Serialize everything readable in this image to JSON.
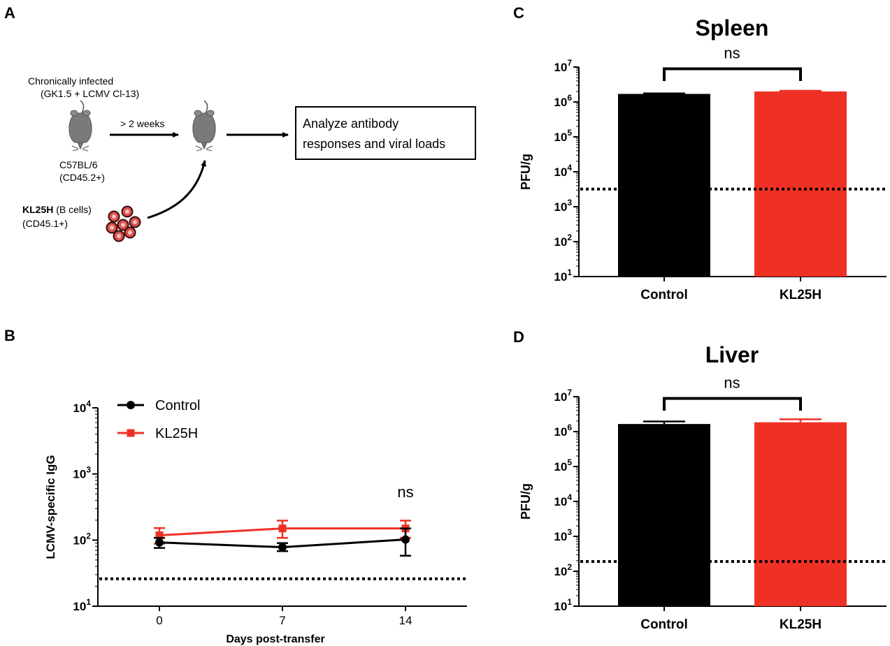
{
  "colors": {
    "control": "#000000",
    "kl25h": "#ee3124",
    "cell": "#d9534f"
  },
  "panel_a": {
    "letter": "A",
    "infected_line1": "Chronically infected",
    "infected_line2": "(GK1.5 + LCMV Cl-13)",
    "mouse_strain": "C57BL/6",
    "mouse_marker": "(CD45.2+)",
    "arrow_label": "> 2 weeks",
    "cells_name": "KL25H",
    "cells_rest": " (B cells)",
    "cells_marker": "(CD45.1+)",
    "box_line1": "Analyze antibody",
    "box_line2": "responses and viral loads"
  },
  "chart_data": [
    {
      "panel": "B",
      "type": "line",
      "title": "",
      "xlabel": "Days post-transfer",
      "ylabel": "LCMV-specific IgG",
      "yscale": "log",
      "ylim": [
        10,
        10000
      ],
      "xlim": [
        -3.5,
        17.5
      ],
      "x": [
        0,
        7,
        14
      ],
      "x_ticks": [
        "0",
        "7",
        "14"
      ],
      "y_ticks": [
        {
          "base": "10",
          "exp": "1"
        },
        {
          "base": "10",
          "exp": "2"
        },
        {
          "base": "10",
          "exp": "3"
        },
        {
          "base": "10",
          "exp": "4"
        }
      ],
      "series": [
        {
          "name": "Control",
          "marker": "circle",
          "values": [
            92,
            78,
            102
          ],
          "err_low": [
            76,
            68,
            58
          ],
          "err_high": [
            108,
            90,
            150
          ]
        },
        {
          "name": "KL25H",
          "marker": "square",
          "values": [
            118,
            150,
            150
          ],
          "err_low": [
            88,
            108,
            108
          ],
          "err_high": [
            152,
            197,
            197
          ]
        }
      ],
      "detection_limit": 26,
      "annotation": "ns",
      "legend": "top-left"
    },
    {
      "panel": "C",
      "type": "bar",
      "title": "Spleen",
      "xlabel": "",
      "ylabel": "PFU/g",
      "yscale": "log",
      "ylim": [
        10,
        10000000
      ],
      "categories": [
        "Control",
        "KL25H"
      ],
      "values": [
        1700000,
        2000000
      ],
      "err_high": [
        1760000,
        2090000
      ],
      "y_ticks": [
        {
          "base": "10",
          "exp": "1"
        },
        {
          "base": "10",
          "exp": "2"
        },
        {
          "base": "10",
          "exp": "3"
        },
        {
          "base": "10",
          "exp": "4"
        },
        {
          "base": "10",
          "exp": "5"
        },
        {
          "base": "10",
          "exp": "6"
        },
        {
          "base": "10",
          "exp": "7"
        }
      ],
      "detection_limit": 3200,
      "annotation": "ns"
    },
    {
      "panel": "D",
      "type": "bar",
      "title": "Liver",
      "xlabel": "",
      "ylabel": "PFU/g",
      "yscale": "log",
      "ylim": [
        10,
        10000000
      ],
      "categories": [
        "Control",
        "KL25H"
      ],
      "values": [
        1650000,
        1850000
      ],
      "err_high": [
        1950000,
        2250000
      ],
      "y_ticks": [
        {
          "base": "10",
          "exp": "1"
        },
        {
          "base": "10",
          "exp": "2"
        },
        {
          "base": "10",
          "exp": "3"
        },
        {
          "base": "10",
          "exp": "4"
        },
        {
          "base": "10",
          "exp": "5"
        },
        {
          "base": "10",
          "exp": "6"
        },
        {
          "base": "10",
          "exp": "7"
        }
      ],
      "detection_limit": 190,
      "annotation": "ns"
    }
  ]
}
